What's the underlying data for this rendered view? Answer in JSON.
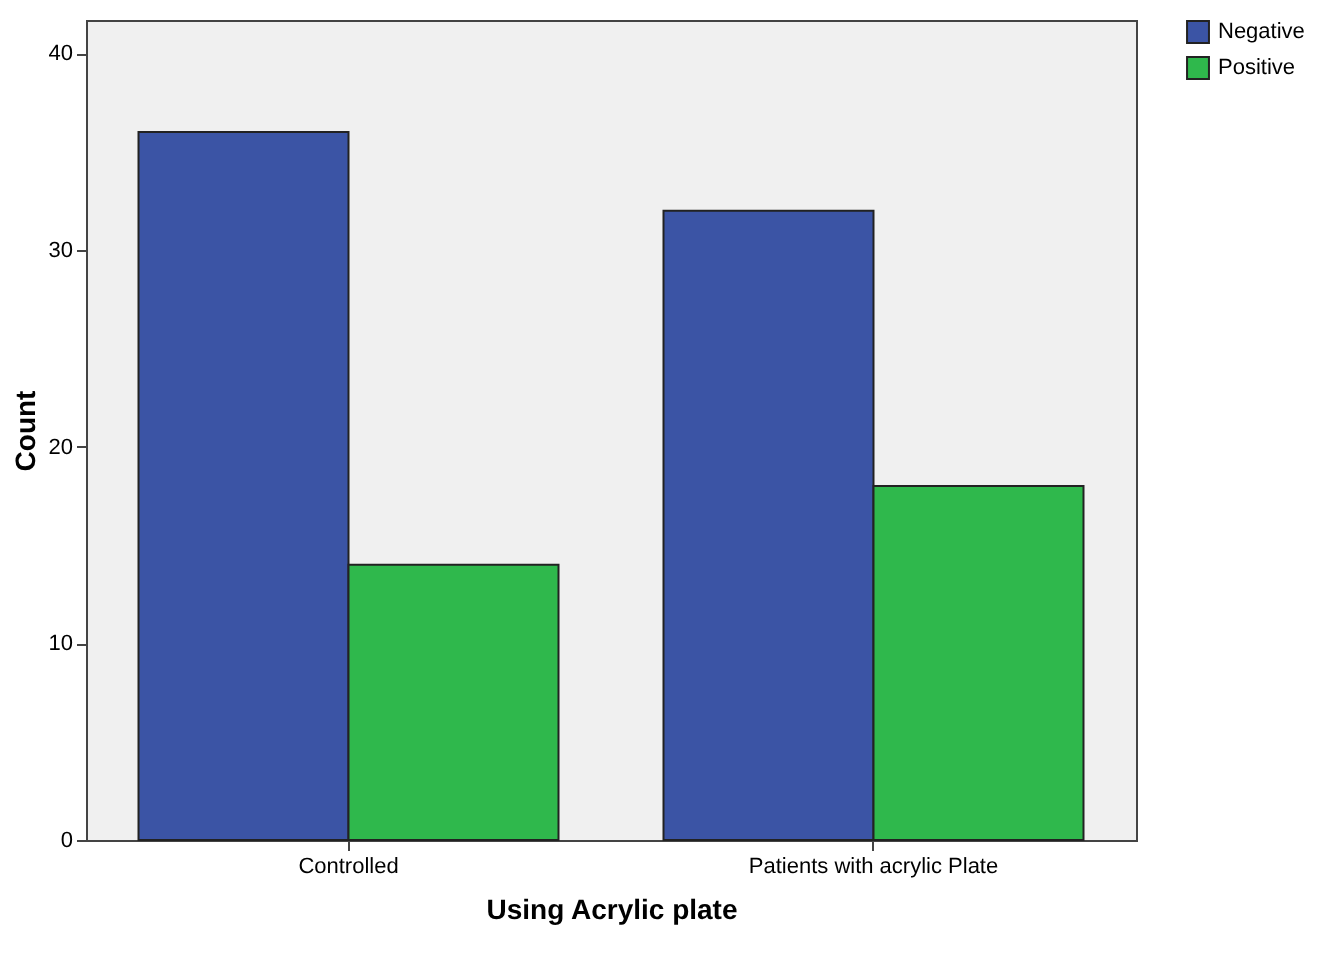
{
  "chart_data": {
    "type": "bar",
    "xlabel": "Using Acrylic plate",
    "ylabel": "Count",
    "categories": [
      "Controlled",
      "Patients with acrylic Plate"
    ],
    "series": [
      {
        "name": "Negative",
        "color": "#3b54a5",
        "values": [
          36,
          32
        ]
      },
      {
        "name": "Positive",
        "color": "#2fb84c",
        "values": [
          14,
          18
        ]
      }
    ],
    "ylim": [
      0,
      41.7
    ],
    "yticks": [
      0,
      10,
      20,
      30,
      40
    ],
    "grid": false,
    "legend": "top right"
  }
}
